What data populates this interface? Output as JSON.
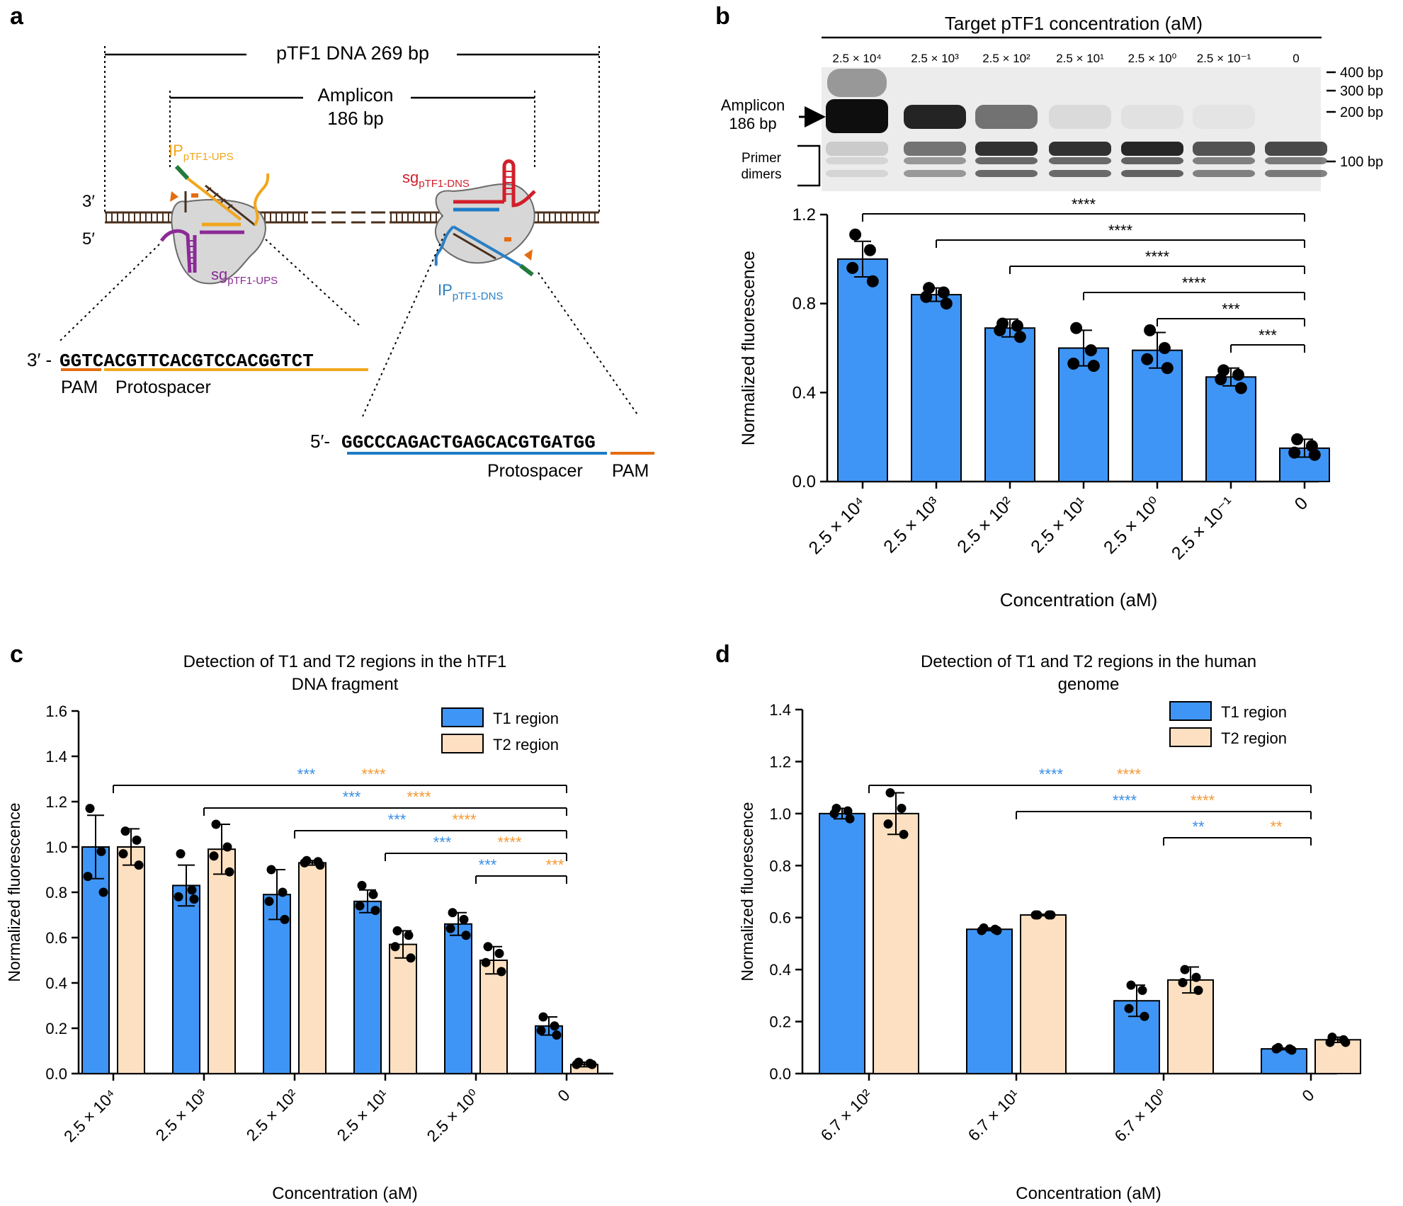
{
  "panel_labels": {
    "a": "a",
    "b": "b",
    "c": "c",
    "d": "d"
  },
  "colors": {
    "blue": "#3f95f6",
    "tan": "#fde0c1",
    "blue_text": "#3c8ee6",
    "orange_text": "#f39a35",
    "pam": "#e46c11",
    "protospacer_up": "#f2a61c",
    "protospacer_dn": "#1d7bc6",
    "ip_up": "#f2a61c",
    "ip_dn": "#2a7fc4",
    "sg_up": "#8b2a96",
    "sg_dn": "#d21f2b",
    "dna": "#4a2f1c",
    "green": "#247a3d",
    "cas": "#d7d7d7"
  },
  "panel_a": {
    "full_label": "pTF1 DNA 269 bp",
    "amplicon_label_1": "Amplicon",
    "amplicon_label_2": "186 bp",
    "strand_3": "3′",
    "strand_5": "5′",
    "ip_up": {
      "main": "IP",
      "sub": "pTF1-UPS"
    },
    "sg_up": {
      "main": "sg",
      "sub": "pTF1-UPS"
    },
    "sg_dn": {
      "main": "sg",
      "sub": "pTF1-DNS"
    },
    "ip_dn": {
      "main": "IP",
      "sub": "pTF1-DNS"
    },
    "seq1": {
      "prefix": "3′ -",
      "sequence": "GGTCACGTTCACGTCCACGGTCT",
      "pam": "PAM",
      "protospacer": "Protospacer"
    },
    "seq2": {
      "prefix": "5′-",
      "sequence": "GGCCCAGACTGAGCACGTGATGG",
      "pam": "PAM",
      "protospacer": "Protospacer"
    }
  },
  "panel_b_gel": {
    "title": "Target pTF1 concentration (aM)",
    "lanes": [
      "2.5 × 10⁴",
      "2.5 × 10³",
      "2.5 × 10²",
      "2.5 × 10¹",
      "2.5 × 10⁰",
      "2.5 × 10⁻¹",
      "0"
    ],
    "amplicon_label_1": "Amplicon",
    "amplicon_label_2": "186 bp",
    "primer_label_1": "Primer",
    "primer_label_2": "dimers",
    "markers": [
      "400 bp",
      "300 bp",
      "200 bp",
      "100 bp"
    ],
    "amplicon_intensity": [
      1.0,
      0.9,
      0.55,
      0.08,
      0.05,
      0.03,
      0.0
    ],
    "primer_intensity": [
      0.15,
      0.55,
      0.85,
      0.85,
      0.9,
      0.7,
      0.75
    ]
  },
  "chart_data": [
    {
      "id": "b",
      "type": "bar",
      "title": "",
      "xlabel": "Concentration (aM)",
      "ylabel": "Normalized fluorescence",
      "ylim": [
        0,
        1.2
      ],
      "yticks": [
        "0.0",
        "0.4",
        "0.8",
        "1.2"
      ],
      "categories": [
        "2.5 × 10⁴",
        "2.5 × 10³",
        "2.5 × 10²",
        "2.5 × 10¹",
        "2.5 × 10⁰",
        "2.5 × 10⁻¹",
        "0"
      ],
      "series": [
        {
          "name": "",
          "values": [
            1.0,
            0.84,
            0.69,
            0.6,
            0.59,
            0.47,
            0.15
          ],
          "errors": [
            0.08,
            0.03,
            0.04,
            0.08,
            0.08,
            0.04,
            0.04
          ],
          "points": [
            [
              1.11,
              1.04,
              0.96,
              0.9
            ],
            [
              0.87,
              0.85,
              0.83,
              0.8
            ],
            [
              0.71,
              0.7,
              0.68,
              0.65
            ],
            [
              0.69,
              0.59,
              0.53,
              0.52
            ],
            [
              0.68,
              0.6,
              0.55,
              0.51
            ],
            [
              0.5,
              0.48,
              0.46,
              0.42
            ],
            [
              0.19,
              0.16,
              0.13,
              0.12
            ]
          ]
        }
      ],
      "significance": [
        {
          "from": 0,
          "to": 6,
          "label": "****"
        },
        {
          "from": 1,
          "to": 6,
          "label": "****"
        },
        {
          "from": 2,
          "to": 6,
          "label": "****"
        },
        {
          "from": 3,
          "to": 6,
          "label": "****"
        },
        {
          "from": 4,
          "to": 6,
          "label": "***"
        },
        {
          "from": 5,
          "to": 6,
          "label": "***"
        }
      ]
    },
    {
      "id": "c",
      "type": "bar",
      "title_1": "Detection of T1 and T2 regions in the hTF1",
      "title_2": "DNA fragment",
      "xlabel": "Concentration (aM)",
      "ylabel": "Normalized fluorescence",
      "ylim": [
        0,
        1.6
      ],
      "yticks": [
        "0.0",
        "0.2",
        "0.4",
        "0.6",
        "0.8",
        "1.0",
        "1.2",
        "1.4",
        "1.6"
      ],
      "categories": [
        "2.5 × 10⁴",
        "2.5 × 10³",
        "2.5 × 10²",
        "2.5 × 10¹",
        "2.5 × 10⁰",
        "0"
      ],
      "series": [
        {
          "name": "T1 region",
          "values": [
            1.0,
            0.83,
            0.79,
            0.76,
            0.66,
            0.21
          ],
          "errors": [
            0.14,
            0.09,
            0.11,
            0.05,
            0.05,
            0.04
          ],
          "points": [
            [
              1.17,
              0.98,
              0.87,
              0.8
            ],
            [
              0.97,
              0.81,
              0.78,
              0.77
            ],
            [
              0.9,
              0.8,
              0.76,
              0.68
            ],
            [
              0.83,
              0.79,
              0.74,
              0.72
            ],
            [
              0.71,
              0.68,
              0.64,
              0.61
            ],
            [
              0.25,
              0.21,
              0.19,
              0.17
            ]
          ]
        },
        {
          "name": "T2 region",
          "values": [
            1.0,
            0.99,
            0.93,
            0.57,
            0.5,
            0.04
          ],
          "errors": [
            0.08,
            0.11,
            0.01,
            0.06,
            0.06,
            0.01
          ],
          "points": [
            [
              1.07,
              1.03,
              0.97,
              0.92
            ],
            [
              1.1,
              1.0,
              0.96,
              0.89
            ],
            [
              0.94,
              0.935,
              0.93,
              0.92
            ],
            [
              0.63,
              0.61,
              0.56,
              0.51
            ],
            [
              0.56,
              0.53,
              0.49,
              0.45
            ],
            [
              0.05,
              0.045,
              0.04,
              0.04
            ]
          ]
        }
      ],
      "significance": [
        {
          "from": 0,
          "to": 5,
          "label_t1": "***",
          "label_t2": "****"
        },
        {
          "from": 1,
          "to": 5,
          "label_t1": "***",
          "label_t2": "****"
        },
        {
          "from": 2,
          "to": 5,
          "label_t1": "***",
          "label_t2": "****"
        },
        {
          "from": 3,
          "to": 5,
          "label_t1": "***",
          "label_t2": "****"
        },
        {
          "from": 4,
          "to": 5,
          "label_t1": "***",
          "label_t2": "***"
        }
      ],
      "legend_position": "top-right"
    },
    {
      "id": "d",
      "type": "bar",
      "title_1": "Detection of T1 and T2 regions in the human",
      "title_2": "genome",
      "xlabel": "Concentration (aM)",
      "ylabel": "Normalized fluorescence",
      "ylim": [
        0,
        1.4
      ],
      "yticks": [
        "0.0",
        "0.2",
        "0.4",
        "0.6",
        "0.8",
        "1.0",
        "1.2",
        "1.4"
      ],
      "categories": [
        "6.7 × 10²",
        "6.7 × 10¹",
        "6.7 × 10⁰",
        "0"
      ],
      "series": [
        {
          "name": "T1 region",
          "values": [
            1.0,
            0.555,
            0.28,
            0.095
          ],
          "errors": [
            0.02,
            0.005,
            0.06,
            0.003
          ],
          "points": [
            [
              1.02,
              1.01,
              1.0,
              0.98
            ],
            [
              0.56,
              0.555,
              0.55,
              0.55
            ],
            [
              0.34,
              0.32,
              0.25,
              0.22
            ],
            [
              0.1,
              0.095,
              0.095,
              0.09
            ]
          ]
        },
        {
          "name": "T2 region",
          "values": [
            1.0,
            0.61,
            0.36,
            0.13
          ],
          "errors": [
            0.08,
            0.003,
            0.05,
            0.01
          ],
          "points": [
            [
              1.08,
              1.02,
              0.96,
              0.92
            ],
            [
              0.61,
              0.61,
              0.61,
              0.61
            ],
            [
              0.4,
              0.37,
              0.35,
              0.32
            ],
            [
              0.14,
              0.13,
              0.12,
              0.12
            ]
          ]
        }
      ],
      "significance": [
        {
          "from": 0,
          "to": 3,
          "label_t1": "****",
          "label_t2": "****"
        },
        {
          "from": 1,
          "to": 3,
          "label_t1": "****",
          "label_t2": "****"
        },
        {
          "from": 2,
          "to": 3,
          "label_t1": "**",
          "label_t2": "**"
        }
      ],
      "legend_position": "top-right"
    }
  ]
}
